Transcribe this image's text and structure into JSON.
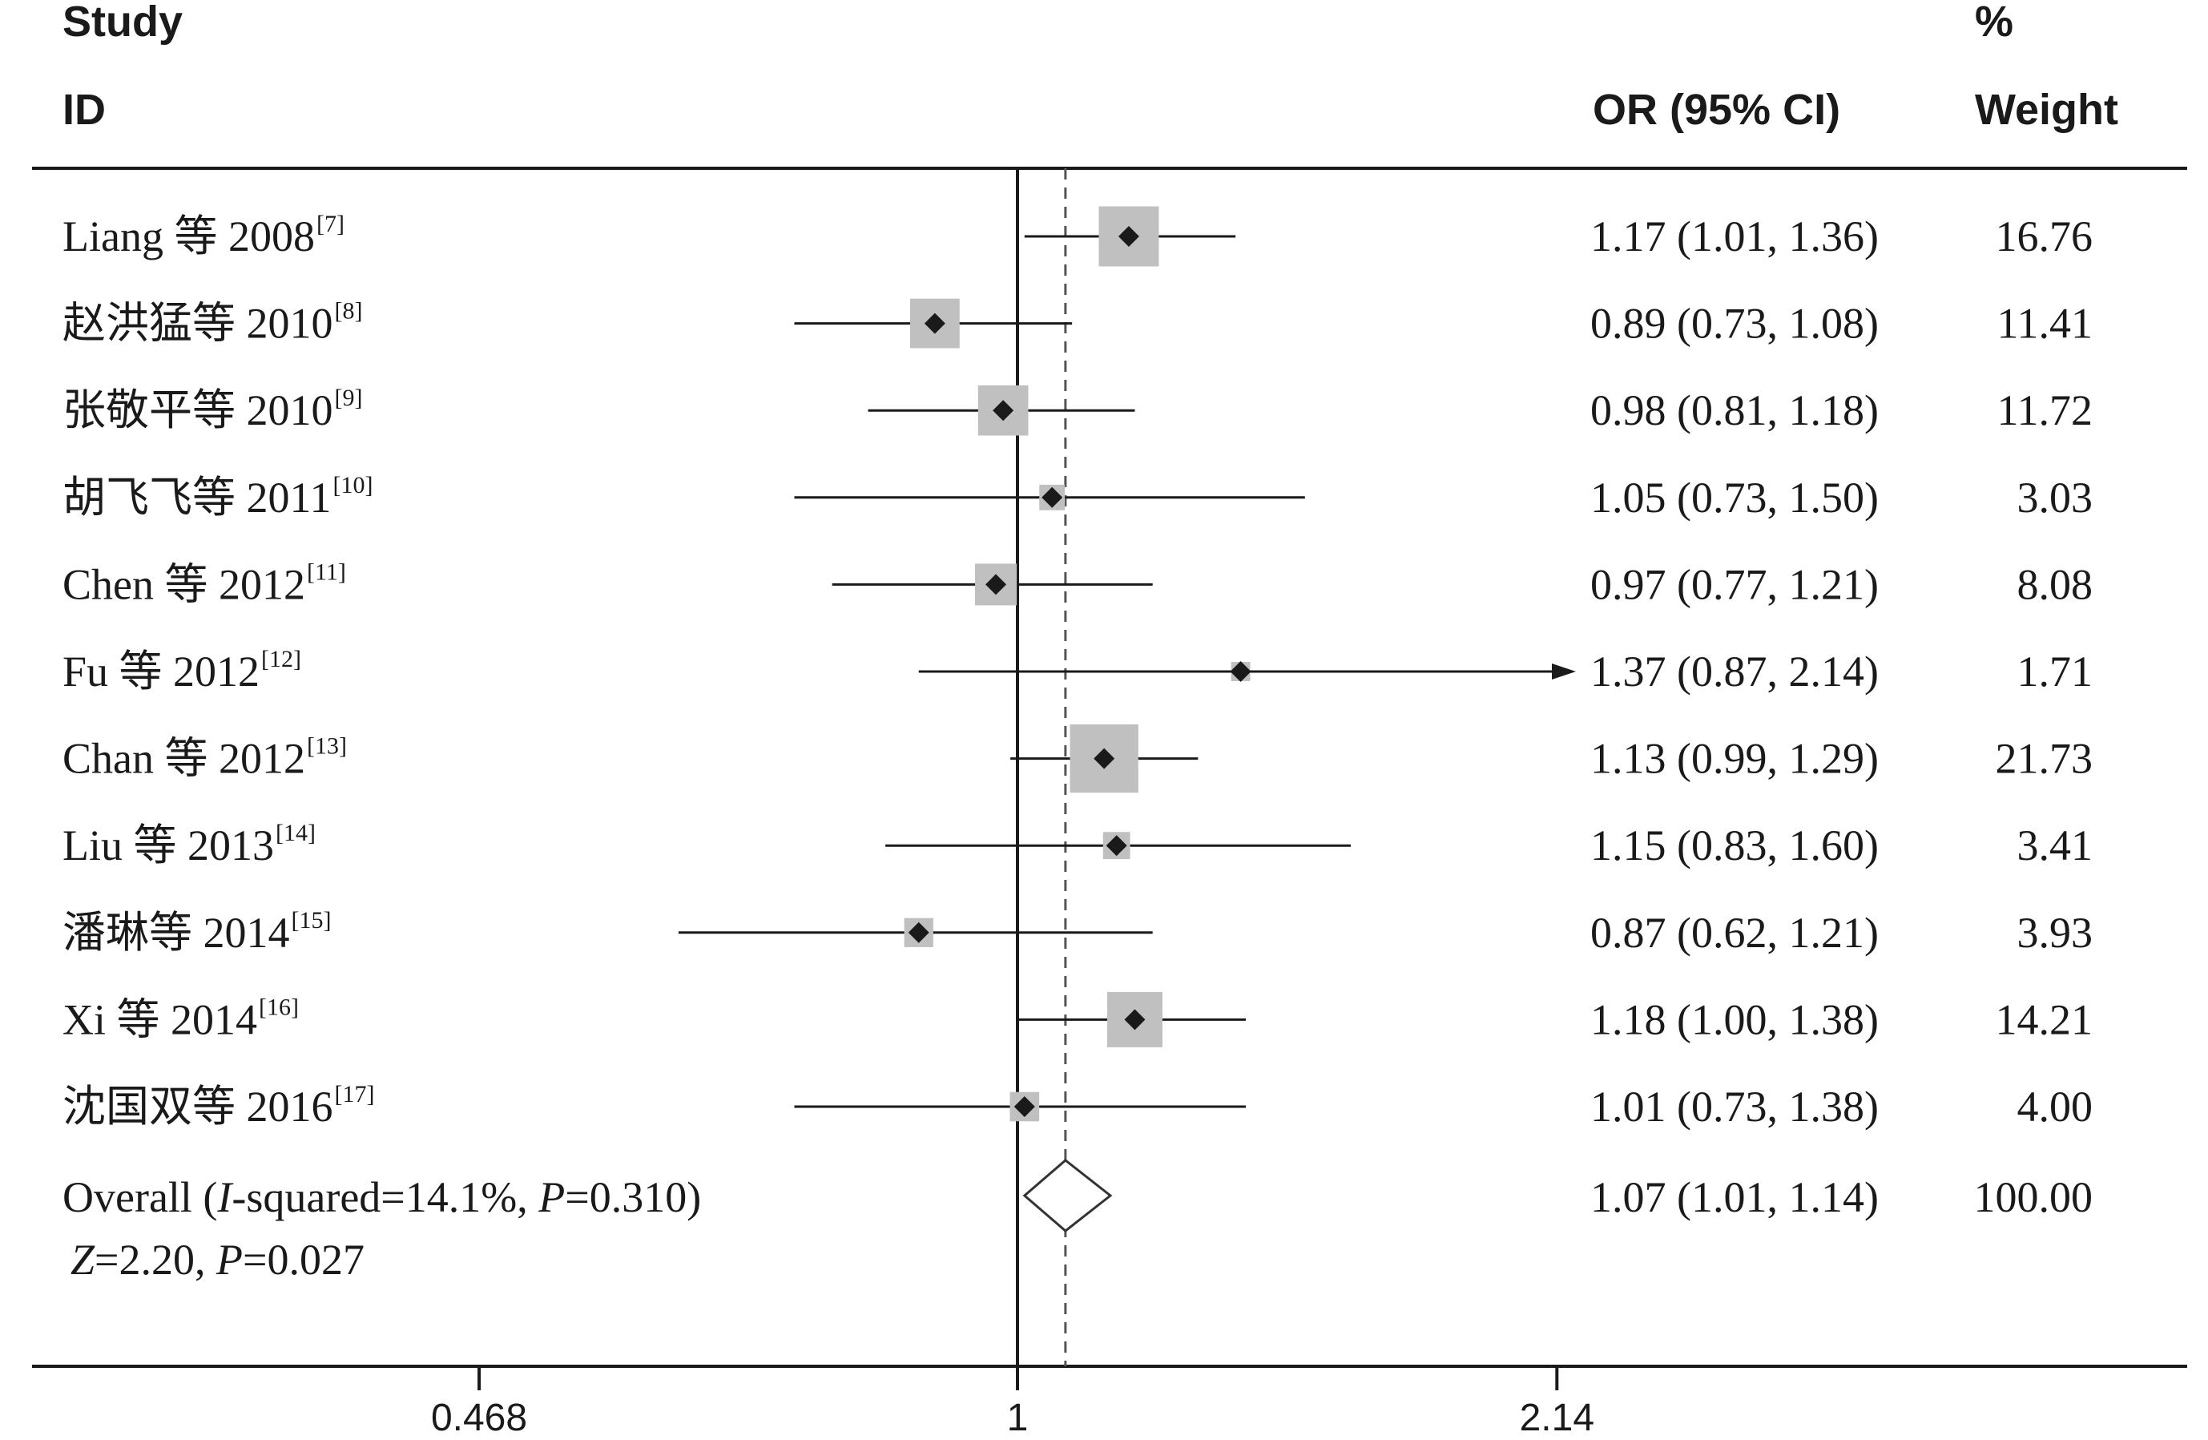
{
  "chart_data": {
    "type": "forest",
    "x_scale": "log",
    "header": {
      "study_line1": "Study",
      "study_line2": "ID",
      "or_label": "OR (95% CI)",
      "weight_line1": "%",
      "weight_line2": "Weight"
    },
    "null_value": 1,
    "xticks": [
      {
        "label": "0.468",
        "value": 0.468
      },
      {
        "label": "1",
        "value": 1
      },
      {
        "label": "2.14",
        "value": 2.14
      }
    ],
    "studies": [
      {
        "name": "Liang 等 2008",
        "ref": "[7]",
        "or": 1.17,
        "lo": 1.01,
        "hi": 1.36,
        "or_text": "1.17 (1.01, 1.36)",
        "weight": 16.76,
        "weight_text": "16.76"
      },
      {
        "name": "赵洪猛等 2010",
        "ref": "[8]",
        "or": 0.89,
        "lo": 0.73,
        "hi": 1.08,
        "or_text": "0.89 (0.73, 1.08)",
        "weight": 11.41,
        "weight_text": "11.41"
      },
      {
        "name": "张敬平等 2010",
        "ref": "[9]",
        "or": 0.98,
        "lo": 0.81,
        "hi": 1.18,
        "or_text": "0.98 (0.81, 1.18)",
        "weight": 11.72,
        "weight_text": "11.72"
      },
      {
        "name": "胡飞飞等 2011",
        "ref": "[10]",
        "or": 1.05,
        "lo": 0.73,
        "hi": 1.5,
        "or_text": "1.05 (0.73, 1.50)",
        "weight": 3.03,
        "weight_text": "3.03"
      },
      {
        "name": "Chen 等 2012",
        "ref": "[11]",
        "or": 0.97,
        "lo": 0.77,
        "hi": 1.21,
        "or_text": "0.97 (0.77, 1.21)",
        "weight": 8.08,
        "weight_text": "8.08"
      },
      {
        "name": "Fu 等 2012",
        "ref": "[12]",
        "or": 1.37,
        "lo": 0.87,
        "hi": 2.14,
        "or_text": "1.37 (0.87, 2.14)",
        "weight": 1.71,
        "weight_text": "1.71",
        "arrow_right": true
      },
      {
        "name": "Chan 等 2012",
        "ref": "[13]",
        "or": 1.13,
        "lo": 0.99,
        "hi": 1.29,
        "or_text": "1.13 (0.99, 1.29)",
        "weight": 21.73,
        "weight_text": "21.73"
      },
      {
        "name": "Liu 等 2013",
        "ref": "[14]",
        "or": 1.15,
        "lo": 0.83,
        "hi": 1.6,
        "or_text": "1.15 (0.83, 1.60)",
        "weight": 3.41,
        "weight_text": "3.41"
      },
      {
        "name": "潘琳等 2014",
        "ref": "[15]",
        "or": 0.87,
        "lo": 0.62,
        "hi": 1.21,
        "or_text": "0.87 (0.62, 1.21)",
        "weight": 3.93,
        "weight_text": "3.93"
      },
      {
        "name": "Xi 等 2014",
        "ref": "[16]",
        "or": 1.18,
        "lo": 1.0,
        "hi": 1.38,
        "or_text": "1.18 (1.00, 1.38)",
        "weight": 14.21,
        "weight_text": "14.21"
      },
      {
        "name": "沈国双等 2016",
        "ref": "[17]",
        "or": 1.01,
        "lo": 0.73,
        "hi": 1.38,
        "or_text": "1.01 (0.73, 1.38)",
        "weight": 4.0,
        "weight_text": "4.00"
      }
    ],
    "overall": {
      "label_prefix": "Overall (",
      "label_i": "I",
      "label_mid": "-squared=14.1%, ",
      "label_p": "P",
      "label_end": "=0.310)",
      "z_z": "Z",
      "z_mid": "=2.20, ",
      "z_p": "P",
      "z_end": "=0.027",
      "or": 1.07,
      "lo": 1.01,
      "hi": 1.14,
      "or_text": "1.07 (1.01, 1.14)",
      "weight_text": "100.00"
    },
    "colors": {
      "box": "#c0c0c0",
      "point": "#1a1a1a",
      "line": "#1a1a1a",
      "diamond_stroke": "#333333",
      "dashed": "#555555"
    }
  }
}
